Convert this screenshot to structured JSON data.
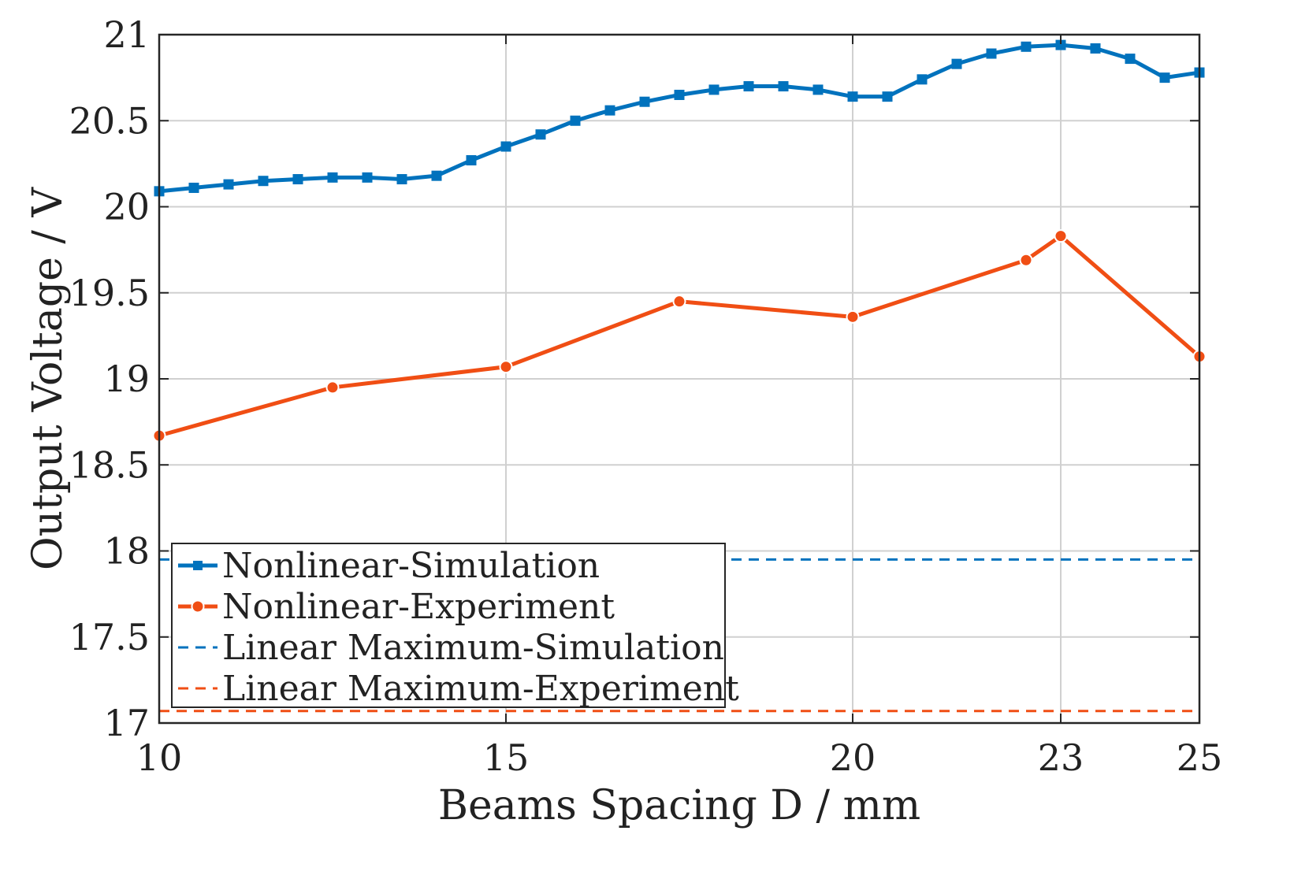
{
  "chart_data": {
    "type": "line",
    "title": "",
    "xlabel": "Beams Spacing D / mm",
    "ylabel": "Output Voltage / V",
    "xlim": [
      10,
      25
    ],
    "ylim": [
      17,
      21
    ],
    "xticks": [
      10,
      15,
      20,
      23,
      25
    ],
    "yticks": [
      17,
      17.5,
      18,
      18.5,
      19,
      19.5,
      20,
      20.5,
      21
    ],
    "xtick_labels": [
      "10",
      "15",
      "20",
      "23",
      "25"
    ],
    "ytick_labels": [
      "17",
      "17.5",
      "18",
      "18.5",
      "19",
      "19.5",
      "20",
      "20.5",
      "21"
    ],
    "grid": true,
    "legend_position": "lower-left",
    "series": [
      {
        "name": "Nonlinear-Simulation",
        "style": "solid",
        "marker": "square",
        "color": "#0072BD",
        "x": [
          10,
          10.5,
          11,
          11.5,
          12,
          12.5,
          13,
          13.5,
          14,
          14.5,
          15,
          15.5,
          16,
          16.5,
          17,
          17.5,
          18,
          18.5,
          19,
          19.5,
          20,
          20.5,
          21,
          21.5,
          22,
          22.5,
          23,
          23.5,
          24,
          24.5,
          25
        ],
        "y": [
          20.09,
          20.11,
          20.13,
          20.15,
          20.16,
          20.17,
          20.17,
          20.16,
          20.18,
          20.27,
          20.35,
          20.42,
          20.5,
          20.56,
          20.61,
          20.65,
          20.68,
          20.7,
          20.7,
          20.68,
          20.64,
          20.64,
          20.74,
          20.83,
          20.89,
          20.93,
          20.94,
          20.92,
          20.86,
          20.75,
          20.78
        ]
      },
      {
        "name": "Nonlinear-Experiment",
        "style": "solid",
        "marker": "circle",
        "color": "#F04E14",
        "x": [
          10,
          12.5,
          15,
          17.5,
          20,
          22.5,
          23,
          25
        ],
        "y": [
          18.67,
          18.95,
          19.07,
          19.45,
          19.36,
          19.69,
          19.83,
          19.13
        ]
      },
      {
        "name": "Linear Maximum-Simulation",
        "style": "dashed",
        "marker": "none",
        "color": "#0072BD",
        "x": [
          10,
          25
        ],
        "y": [
          17.95,
          17.95
        ]
      },
      {
        "name": "Linear Maximum-Experiment",
        "style": "dashed",
        "marker": "none",
        "color": "#F04E14",
        "x": [
          10,
          25
        ],
        "y": [
          17.07,
          17.07
        ]
      }
    ]
  }
}
